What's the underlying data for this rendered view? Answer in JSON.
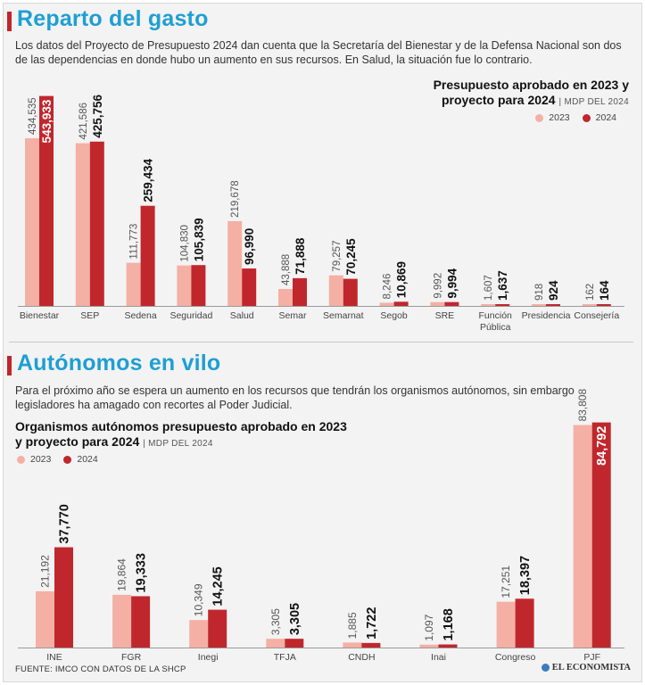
{
  "section1": {
    "title": "Reparto del gasto",
    "intro": "Los datos del Proyecto de Presupuesto 2024 dan cuenta que la Secretaría del Bienestar y de la Defensa Nacional son dos de las dependencias en donde hubo un aumento en sus recursos. En Salud, la situación fue lo contrario.",
    "chart_title_line1": "Presupuesto aprobado en 2023 y",
    "chart_title_line2": "proyecto para 2024",
    "chart_unit": "| MDP DEL 2024",
    "legend_2023": "2023",
    "legend_2024": "2024"
  },
  "section2": {
    "title": "Autónomos en vilo",
    "intro": "Para el próximo año se espera un aumento en los recursos que tendrán los organismos autónomos, sin embargo legisladores ha amagado con recortes al Poder Judicial.",
    "chart_title_line1": "Organismos autónomos presupuesto aprobado en 2023",
    "chart_title_line2": "y proyecto para 2024",
    "chart_unit": "| MDP DEL 2024",
    "legend_2023": "2023",
    "legend_2024": "2024"
  },
  "footer": {
    "source": "FUENTE: IMCO CON DATOS DE LA SHCP",
    "brand": "EL ECONOMISTA"
  },
  "colors": {
    "c2023": "#f4b0a4",
    "c2024": "#c0272d",
    "title": "#1e9fd4"
  },
  "chart_data": [
    {
      "type": "bar",
      "title": "Presupuesto aprobado en 2023 y proyecto para 2024",
      "unit": "MDP del 2024",
      "categories": [
        "Bienestar",
        "SEP",
        "Sedena",
        "Seguridad",
        "Salud",
        "Semar",
        "Semarnat",
        "Segob",
        "SRE",
        "Función|Pública",
        "Presidencia",
        "Consejería"
      ],
      "series": [
        {
          "name": "2023",
          "values": [
            434535,
            421586,
            111773,
            104830,
            219678,
            43888,
            79257,
            8246,
            9992,
            1607,
            918,
            162
          ],
          "labels": [
            "434,535",
            "421,586",
            "111,773",
            "104,830",
            "219,678",
            "43,888",
            "79,257",
            "8,246",
            "9,992",
            "1,607",
            "918",
            "162"
          ]
        },
        {
          "name": "2024",
          "values": [
            543933,
            425756,
            259434,
            105839,
            96990,
            71888,
            70245,
            10869,
            9994,
            1637,
            924,
            164
          ],
          "labels": [
            "543,933",
            "425,756",
            "259,434",
            "105,839",
            "96,990",
            "71,888",
            "70,245",
            "10,869",
            "9,994",
            "1,637",
            "924",
            "164"
          ]
        }
      ],
      "ylim": [
        0,
        550000
      ]
    },
    {
      "type": "bar",
      "title": "Organismos autónomos presupuesto aprobado en 2023 y proyecto para 2024",
      "unit": "MDP del 2024",
      "categories": [
        "INE",
        "FGR",
        "Inegi",
        "TFJA",
        "CNDH",
        "Inai",
        "Congreso",
        "PJF"
      ],
      "series": [
        {
          "name": "2023",
          "values": [
            21192,
            19864,
            10349,
            3305,
            1885,
            1097,
            17251,
            83808
          ],
          "labels": [
            "21,192",
            "19,864",
            "10,349",
            "3,305",
            "1,885",
            "1,097",
            "17,251",
            "83,808"
          ]
        },
        {
          "name": "2024",
          "values": [
            37770,
            19333,
            14245,
            3305,
            1722,
            1168,
            18397,
            84792
          ],
          "labels": [
            "37,770",
            "19,333",
            "14,245",
            "3,305",
            "1,722",
            "1,168",
            "18,397",
            "84,792"
          ]
        }
      ],
      "ylim": [
        0,
        85000
      ]
    }
  ]
}
